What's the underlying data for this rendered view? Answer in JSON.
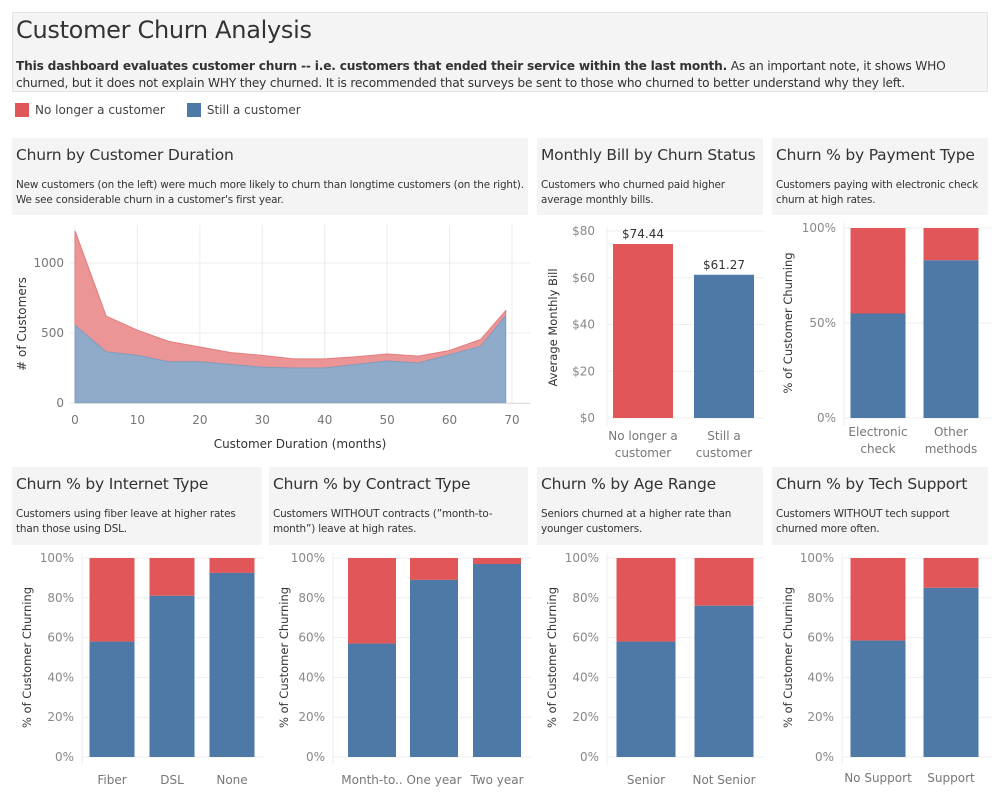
{
  "header": {
    "title": "Customer Churn Analysis",
    "description_bold": "This dashboard evaluates customer churn -- i.e. customers that ended their service within the last month.",
    "description_rest": "  As an important note, it shows WHO churned, but it does not explain WHY they churned.  It is recommended that surveys be sent to those who churned to better understand why they left."
  },
  "legend": {
    "items": [
      {
        "label": "No longer a customer",
        "color": "#e15759"
      },
      {
        "label": "Still a customer",
        "color": "#4e79a7"
      }
    ]
  },
  "colors": {
    "churned": "#e15759",
    "retained": "#4e79a7",
    "churned_area": "#eb9596",
    "retained_area": "#8fabc9"
  },
  "panels": {
    "duration": {
      "title": "Churn by Customer Duration",
      "subtitle": "New customers (on the left) were much more likely to churn than longtime customers (on the right).  We see considerable churn in a customer's first year."
    },
    "bill": {
      "title": "Monthly Bill by Churn Status",
      "subtitle": "Customers who churned paid higher average monthly bills."
    },
    "payment": {
      "title": "Churn % by Payment Type",
      "subtitle": "Customers paying with electronic check churn at high rates."
    },
    "internet": {
      "title": "Churn % by Internet Type",
      "subtitle": "Customers using fiber leave at higher rates than those using DSL."
    },
    "contract": {
      "title": "Churn % by Contract Type",
      "subtitle": "Customers WITHOUT contracts (”month-to-month”) leave at high rates."
    },
    "age": {
      "title": "Churn % by Age Range",
      "subtitle": "Seniors churned at a higher rate than younger customers."
    },
    "tech": {
      "title": "Churn % by Tech Support",
      "subtitle": "Customers WITHOUT tech support churned more often."
    }
  },
  "chart_data": [
    {
      "id": "duration",
      "type": "area",
      "title": "Churn by Customer Duration",
      "xlabel": "Customer Duration (months)",
      "ylabel": "# of Customers",
      "xlim": [
        0,
        72
      ],
      "ylim": [
        0,
        1250
      ],
      "xticks": [
        0,
        10,
        20,
        30,
        40,
        50,
        60,
        70
      ],
      "yticks": [
        0,
        500,
        1000
      ],
      "grid": true,
      "x": [
        0,
        5,
        10,
        15,
        20,
        25,
        30,
        35,
        40,
        45,
        50,
        55,
        60,
        65,
        69
      ],
      "series": [
        {
          "name": "Still a customer",
          "values": [
            555,
            365,
            340,
            295,
            295,
            275,
            255,
            250,
            250,
            275,
            300,
            285,
            345,
            405,
            625
          ]
        },
        {
          "name": "No longer a customer",
          "values": [
            675,
            255,
            180,
            145,
            105,
            85,
            85,
            65,
            65,
            55,
            50,
            50,
            30,
            50,
            35
          ]
        }
      ]
    },
    {
      "id": "bill",
      "type": "bar",
      "title": "Monthly Bill by Churn Status",
      "ylabel": "Average Monthly Bill",
      "categories": [
        "No longer a customer",
        "Still a customer"
      ],
      "category_lines": [
        [
          "No longer a",
          "customer"
        ],
        [
          "Still a",
          "customer"
        ]
      ],
      "values": [
        74.44,
        61.27
      ],
      "data_labels": [
        "$74.44",
        "$61.27"
      ],
      "ylim": [
        0,
        80
      ],
      "yticks": [
        0,
        20,
        40,
        60,
        80
      ],
      "ytick_labels": [
        "$0",
        "$20",
        "$40",
        "$60",
        "$80"
      ],
      "grid": true
    },
    {
      "id": "payment",
      "type": "bar",
      "stacked": true,
      "title": "Churn % by Payment Type",
      "ylabel": "% of Customer Churning",
      "categories": [
        "Electronic check",
        "Other methods"
      ],
      "category_lines": [
        [
          "Electronic",
          "check"
        ],
        [
          "Other",
          "methods"
        ]
      ],
      "series": [
        {
          "name": "Still a customer",
          "values": [
            55,
            83
          ]
        },
        {
          "name": "No longer a customer",
          "values": [
            45,
            17
          ]
        }
      ],
      "ylim": [
        0,
        100
      ],
      "yticks": [
        0,
        50,
        100
      ],
      "ytick_labels": [
        "0%",
        "50%",
        "100%"
      ]
    },
    {
      "id": "internet",
      "type": "bar",
      "stacked": true,
      "title": "Churn % by Internet Type",
      "ylabel": "% of Customer Churning",
      "categories": [
        "Fiber",
        "DSL",
        "None"
      ],
      "category_lines": [
        [
          "Fiber"
        ],
        [
          "DSL"
        ],
        [
          "None"
        ]
      ],
      "series": [
        {
          "name": "Still a customer",
          "values": [
            58,
            81,
            92.5
          ]
        },
        {
          "name": "No longer a customer",
          "values": [
            42,
            19,
            7.5
          ]
        }
      ],
      "ylim": [
        0,
        100
      ],
      "yticks": [
        0,
        20,
        40,
        60,
        80,
        100
      ],
      "ytick_labels": [
        "0%",
        "20%",
        "40%",
        "60%",
        "80%",
        "100%"
      ]
    },
    {
      "id": "contract",
      "type": "bar",
      "stacked": true,
      "title": "Churn % by Contract Type",
      "ylabel": "% of Customer Churning",
      "categories": [
        "Month-to..",
        "One year",
        "Two year"
      ],
      "category_lines": [
        [
          "Month-to.."
        ],
        [
          "One year"
        ],
        [
          "Two year"
        ]
      ],
      "series": [
        {
          "name": "Still a customer",
          "values": [
            57,
            89,
            97
          ]
        },
        {
          "name": "No longer a customer",
          "values": [
            43,
            11,
            3
          ]
        }
      ],
      "ylim": [
        0,
        100
      ],
      "yticks": [
        0,
        20,
        40,
        60,
        80,
        100
      ],
      "ytick_labels": [
        "0%",
        "20%",
        "40%",
        "60%",
        "80%",
        "100%"
      ]
    },
    {
      "id": "age",
      "type": "bar",
      "stacked": true,
      "title": "Churn % by Age Range",
      "ylabel": "% of Customer Churning",
      "categories": [
        "Senior",
        "Not Senior"
      ],
      "category_lines": [
        [
          "Senior"
        ],
        [
          "Not Senior"
        ]
      ],
      "series": [
        {
          "name": "Still a customer",
          "values": [
            58,
            76
          ]
        },
        {
          "name": "No longer a customer",
          "values": [
            42,
            24
          ]
        }
      ],
      "ylim": [
        0,
        100
      ],
      "yticks": [
        0,
        20,
        40,
        60,
        80,
        100
      ],
      "ytick_labels": [
        "0%",
        "20%",
        "40%",
        "60%",
        "80%",
        "100%"
      ]
    },
    {
      "id": "tech",
      "type": "bar",
      "stacked": true,
      "title": "Churn % by Tech Support",
      "ylabel": "% of Customer Churning",
      "categories": [
        "No Support",
        "Support"
      ],
      "category_lines": [
        [
          "No Support"
        ],
        [
          "Support"
        ]
      ],
      "series": [
        {
          "name": "Still a customer",
          "values": [
            58.5,
            85
          ]
        },
        {
          "name": "No longer a customer",
          "values": [
            41.5,
            15
          ]
        }
      ],
      "ylim": [
        0,
        100
      ],
      "yticks": [
        0,
        20,
        40,
        60,
        80,
        100
      ],
      "ytick_labels": [
        "0%",
        "20%",
        "40%",
        "60%",
        "80%",
        "100%"
      ]
    }
  ]
}
